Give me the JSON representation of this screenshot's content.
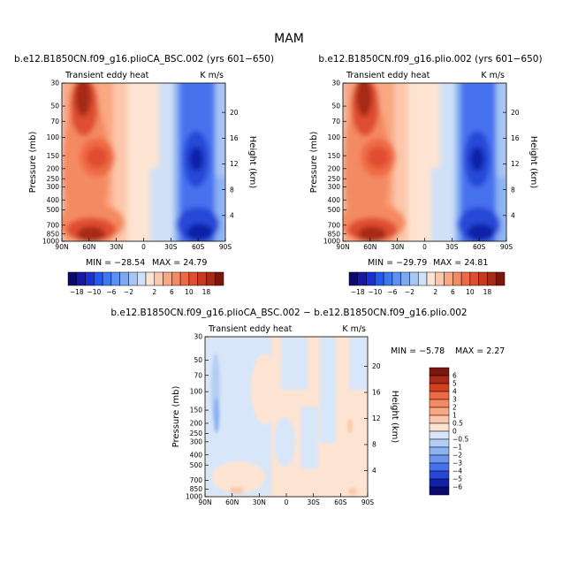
{
  "figure": {
    "title": "MAM"
  },
  "chart_data": [
    {
      "type": "heatmap",
      "title": "b.e12.B1850CN.f09_g16.plioCA_BSC.002 (yrs 601−650)",
      "left_label": "Transient eddy heat",
      "right_label": "K m/s",
      "ylabel": "Pressure (mb)",
      "ylabel_right": "Height (km)",
      "x_ticks": [
        "90N",
        "60N",
        "30N",
        "0",
        "30S",
        "60S",
        "90S"
      ],
      "y_ticks": [
        "30",
        "50",
        "70",
        "100",
        "150",
        "200",
        "250",
        "300",
        "400",
        "500",
        "700",
        "850",
        "1000"
      ],
      "height_ticks": [
        "20",
        "16",
        "12",
        "8",
        "4"
      ],
      "ylim": [
        1000,
        30
      ],
      "xlim": [
        "90N",
        "90S"
      ],
      "min_label": "MIN = −28.54",
      "max_label": "MAX = 24.79",
      "min": -28.54,
      "max": 24.79,
      "colorbar": {
        "orientation": "horizontal",
        "tick_labels": [
          "−18",
          "−10",
          "−6",
          "−2",
          "2",
          "6",
          "10",
          "18"
        ],
        "colors": [
          "#0a0a6e",
          "#1818a8",
          "#1b2fd6",
          "#2458f0",
          "#3c78f2",
          "#5a91f2",
          "#7ea8f2",
          "#a8c6f2",
          "#cfe0f7",
          "#fde4d2",
          "#fcc7aa",
          "#f9a882",
          "#f48a62",
          "#ee6a45",
          "#e04e30",
          "#c73a22",
          "#a62a18",
          "#7a170d"
        ]
      }
    },
    {
      "type": "heatmap",
      "title": "b.e12.B1850CN.f09_g16.plio.002 (yrs 601−650)",
      "left_label": "Transient eddy heat",
      "right_label": "K m/s",
      "ylabel": "Pressure (mb)",
      "ylabel_right": "Height (km)",
      "x_ticks": [
        "90N",
        "60N",
        "30N",
        "0",
        "30S",
        "60S",
        "90S"
      ],
      "y_ticks": [
        "30",
        "50",
        "70",
        "100",
        "150",
        "200",
        "250",
        "300",
        "400",
        "500",
        "700",
        "850",
        "1000"
      ],
      "height_ticks": [
        "20",
        "16",
        "12",
        "8",
        "4"
      ],
      "ylim": [
        1000,
        30
      ],
      "xlim": [
        "90N",
        "90S"
      ],
      "min_label": "MIN = −29.79",
      "max_label": "MAX = 24.81",
      "min": -29.79,
      "max": 24.81,
      "colorbar": {
        "orientation": "horizontal",
        "tick_labels": [
          "−18",
          "−10",
          "−6",
          "−2",
          "2",
          "6",
          "10",
          "18"
        ],
        "colors": [
          "#0a0a6e",
          "#1818a8",
          "#1b2fd6",
          "#2458f0",
          "#3c78f2",
          "#5a91f2",
          "#7ea8f2",
          "#a8c6f2",
          "#cfe0f7",
          "#fde4d2",
          "#fcc7aa",
          "#f9a882",
          "#f48a62",
          "#ee6a45",
          "#e04e30",
          "#c73a22",
          "#a62a18",
          "#7a170d"
        ]
      }
    },
    {
      "type": "heatmap",
      "title": "b.e12.B1850CN.f09_g16.plioCA_BSC.002 − b.e12.B1850CN.f09_g16.plio.002",
      "left_label": "Transient eddy heat",
      "right_label": "K m/s",
      "ylabel": "Pressure (mb)",
      "ylabel_right": "Height (km)",
      "x_ticks": [
        "90N",
        "60N",
        "30N",
        "0",
        "30S",
        "60S",
        "90S"
      ],
      "y_ticks": [
        "30",
        "50",
        "70",
        "100",
        "150",
        "200",
        "250",
        "300",
        "400",
        "500",
        "700",
        "850",
        "1000"
      ],
      "height_ticks": [
        "20",
        "16",
        "12",
        "8",
        "4"
      ],
      "ylim": [
        1000,
        30
      ],
      "xlim": [
        "90N",
        "90S"
      ],
      "min_label": "MIN = −5.78",
      "max_label": "MAX = 2.27",
      "min": -5.78,
      "max": 2.27,
      "colorbar": {
        "orientation": "vertical",
        "tick_labels": [
          "6",
          "5",
          "4",
          "3",
          "2",
          "1",
          "0.5",
          "0",
          "−0.5",
          "−1",
          "−2",
          "−3",
          "−4",
          "−5",
          "−6"
        ],
        "colors": [
          "#7a170d",
          "#a62a18",
          "#d2401f",
          "#ee6a45",
          "#f48a62",
          "#f9a882",
          "#fcc7aa",
          "#fde4d2",
          "#d7e6f8",
          "#b3cdf4",
          "#8cb2f2",
          "#6a96f0",
          "#4672ee",
          "#2548d8",
          "#1020a8",
          "#0a0a6e"
        ]
      }
    }
  ]
}
